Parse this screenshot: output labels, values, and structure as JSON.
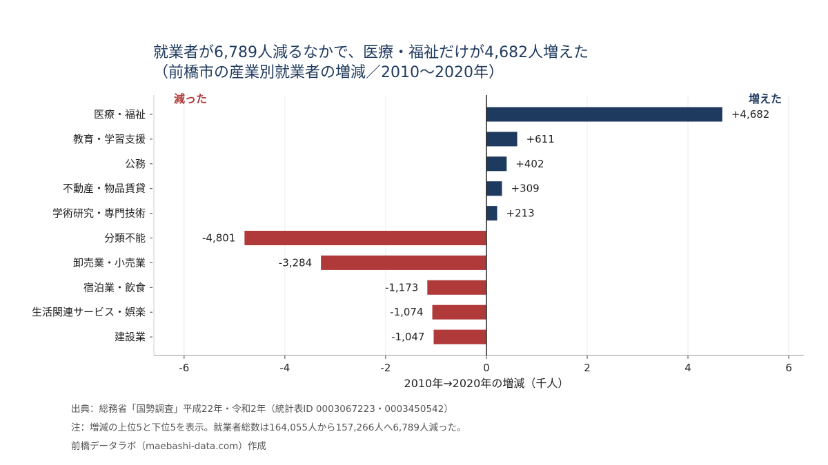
{
  "title": {
    "line1": "就業者が6,789人減るなかで、医療・福祉だけが4,682人増えた",
    "line2": "（前橋市の産業別就業者の増減／2010〜2020年）"
  },
  "chart_data": {
    "type": "bar",
    "orientation": "horizontal",
    "categories": [
      "医療・福祉",
      "教育・学習支援",
      "公務",
      "不動産・物品賃貸",
      "学術研究・専門技術",
      "分類不能",
      "卸売業・小売業",
      "宿泊業・飲食",
      "生活関連サービス・娯楽",
      "建設業"
    ],
    "values": [
      4.682,
      0.611,
      0.402,
      0.309,
      0.213,
      -4.801,
      -3.284,
      -1.173,
      -1.074,
      -1.047
    ],
    "value_labels": [
      "+4,682",
      "+611",
      "+402",
      "+309",
      "+213",
      "-4,801",
      "-3,284",
      "-1,173",
      "-1,074",
      "-1,047"
    ],
    "xlabel": "2010年→2020年の増減（千人）",
    "xlim": [
      -6.6,
      6.3
    ],
    "xticks": [
      -6,
      -4,
      -2,
      0,
      2,
      4,
      6
    ],
    "xtick_labels": [
      "-6",
      "-4",
      "-2",
      "0",
      "2",
      "4",
      "6"
    ],
    "grid": "vertical",
    "annotations": {
      "negative": "減った",
      "positive": "増えた"
    },
    "colors": {
      "positive": "#1f3a5f",
      "negative": "#b03a3a"
    }
  },
  "source": {
    "line1": "出典：総務省「国勢調査」平成22年・令和2年（統計表ID 0003067223・0003450542）",
    "line2": "注：増減の上位5と下位5を表示。就業者総数は164,055人から157,266人へ6,789人減った。",
    "line3": "前橋データラボ（maebashi-data.com）作成"
  }
}
